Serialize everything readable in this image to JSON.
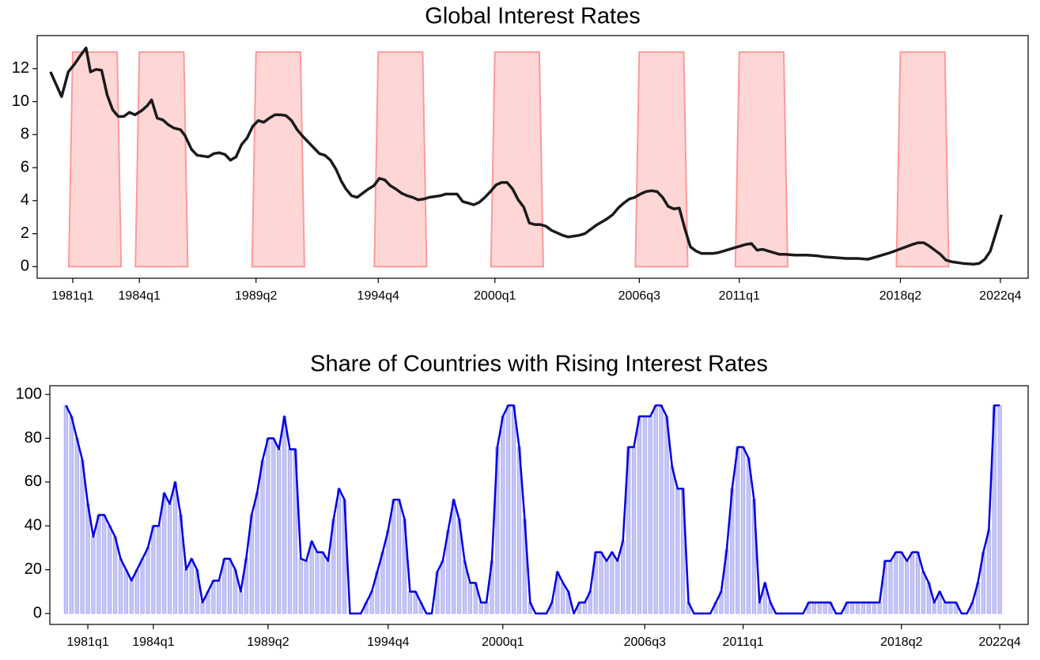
{
  "chart_data": [
    {
      "type": "line",
      "title": "Global Interest Rates",
      "color": "#1a1a1a",
      "x": [
        1980.0,
        1980.3,
        1980.5,
        1980.8,
        1981.1,
        1981.35,
        1981.6,
        1981.8,
        1982.05,
        1982.3,
        1982.55,
        1982.8,
        1983.05,
        1983.3,
        1983.55,
        1983.8,
        1984.1,
        1984.35,
        1984.55,
        1984.8,
        1985.05,
        1985.3,
        1985.55,
        1985.85,
        1986.05,
        1986.35,
        1986.6,
        1986.85,
        1987.1,
        1987.35,
        1987.6,
        1987.85,
        1988.1,
        1988.35,
        1988.6,
        1988.85,
        1989.1,
        1989.35,
        1989.6,
        1989.85,
        1990.1,
        1990.35,
        1990.6,
        1990.85,
        1991.1,
        1991.35,
        1991.6,
        1991.85,
        1992.1,
        1992.35,
        1992.6,
        1992.85,
        1993.1,
        1993.3,
        1993.55,
        1993.8,
        1994.05,
        1994.3,
        1994.55,
        1994.8,
        1995.05,
        1995.3,
        1995.55,
        1995.8,
        1996.05,
        1996.3,
        1996.55,
        1996.8,
        1997.05,
        1997.3,
        1997.55,
        1997.8,
        1998.05,
        1998.3,
        1998.55,
        1998.8,
        1999.05,
        1999.3,
        1999.55,
        1999.8,
        2000.05,
        2000.3,
        2000.55,
        2000.8,
        2001.05,
        2001.3,
        2001.55,
        2001.8,
        2002.05,
        2002.3,
        2002.55,
        2002.8,
        2003.05,
        2003.3,
        2003.55,
        2003.8,
        2004.05,
        2004.3,
        2004.55,
        2004.8,
        2005.05,
        2005.3,
        2005.55,
        2005.8,
        2006.05,
        2006.3,
        2006.55,
        2006.8,
        2007.05,
        2007.3,
        2007.55,
        2007.8,
        2008.05,
        2008.3,
        2008.55,
        2008.8,
        2009.05,
        2009.3,
        2009.55,
        2009.8,
        2010.05,
        2010.3,
        2010.55,
        2010.8,
        2011.05,
        2011.3,
        2011.55,
        2011.8,
        2012.05,
        2012.3,
        2012.55,
        2012.8,
        2013.05,
        2013.5,
        2014.05,
        2014.55,
        2014.8,
        2015.3,
        2015.8,
        2016.3,
        2016.8,
        2017.3,
        2017.8,
        2018.3,
        2018.8,
        2019.05,
        2019.3,
        2019.55,
        2019.8,
        2020.05,
        2020.3,
        2020.55,
        2021.05,
        2021.55,
        2021.8,
        2022.05,
        2022.3,
        2022.55,
        2022.8
      ],
      "values": [
        11.8,
        10.9,
        10.3,
        11.8,
        12.3,
        12.8,
        13.25,
        11.8,
        11.95,
        11.9,
        10.4,
        9.5,
        9.1,
        9.1,
        9.35,
        9.2,
        9.45,
        9.75,
        10.1,
        9.0,
        8.9,
        8.6,
        8.4,
        8.3,
        7.95,
        7.1,
        6.75,
        6.7,
        6.65,
        6.85,
        6.9,
        6.8,
        6.45,
        6.65,
        7.4,
        7.8,
        8.5,
        8.85,
        8.75,
        9.0,
        9.2,
        9.2,
        9.15,
        8.85,
        8.3,
        7.9,
        7.55,
        7.2,
        6.85,
        6.75,
        6.45,
        5.9,
        5.15,
        4.7,
        4.3,
        4.2,
        4.45,
        4.7,
        4.9,
        5.35,
        5.25,
        4.9,
        4.7,
        4.45,
        4.3,
        4.2,
        4.05,
        4.1,
        4.2,
        4.25,
        4.3,
        4.4,
        4.4,
        4.4,
        3.95,
        3.85,
        3.75,
        3.9,
        4.2,
        4.55,
        4.95,
        5.1,
        5.1,
        4.7,
        4.05,
        3.6,
        2.65,
        2.55,
        2.55,
        2.45,
        2.2,
        2.05,
        1.9,
        1.8,
        1.85,
        1.9,
        2.0,
        2.25,
        2.5,
        2.7,
        2.9,
        3.15,
        3.55,
        3.85,
        4.1,
        4.2,
        4.4,
        4.55,
        4.6,
        4.55,
        4.2,
        3.65,
        3.5,
        3.55,
        2.3,
        1.2,
        0.95,
        0.8,
        0.8,
        0.8,
        0.85,
        0.95,
        1.05,
        1.15,
        1.25,
        1.35,
        1.4,
        1.0,
        1.05,
        0.95,
        0.85,
        0.75,
        0.75,
        0.7,
        0.7,
        0.65,
        0.6,
        0.55,
        0.5,
        0.5,
        0.45,
        0.65,
        0.85,
        1.1,
        1.35,
        1.45,
        1.45,
        1.25,
        1.0,
        0.75,
        0.4,
        0.3,
        0.2,
        0.15,
        0.2,
        0.45,
        0.95,
        2.05,
        3.15
      ],
      "bands": [
        {
          "start": 1981.0,
          "end": 1983.0
        },
        {
          "start": 1984.0,
          "end": 1986.0
        },
        {
          "start": 1989.25,
          "end": 1991.25
        },
        {
          "start": 1994.75,
          "end": 1996.75
        },
        {
          "start": 2000.0,
          "end": 2002.0
        },
        {
          "start": 2006.5,
          "end": 2008.5
        },
        {
          "start": 2011.0,
          "end": 2013.0
        },
        {
          "start": 2018.25,
          "end": 2020.25
        }
      ],
      "band_top": 13,
      "band_color": "#ff9999",
      "xlim": [
        1979.4,
        2024.0
      ],
      "ylim": [
        -0.7,
        14
      ],
      "xticks": [
        {
          "value": 1981.0,
          "label": "1981q1"
        },
        {
          "value": 1984.0,
          "label": "1984q1"
        },
        {
          "value": 1989.25,
          "label": "1989q2"
        },
        {
          "value": 1994.75,
          "label": "1994q4"
        },
        {
          "value": 2000.0,
          "label": "2000q1"
        },
        {
          "value": 2006.5,
          "label": "2006q3"
        },
        {
          "value": 2011.0,
          "label": "2011q1"
        },
        {
          "value": 2018.25,
          "label": "2018q2"
        },
        {
          "value": 2022.75,
          "label": "2022q4"
        }
      ],
      "yticks": [
        0,
        2,
        4,
        6,
        8,
        10,
        12
      ]
    },
    {
      "type": "bar",
      "title": "Share of Countries with Rising Interest Rates",
      "color": "#c6c6f7",
      "line_color": "#0000e6",
      "x": [
        1980.0,
        1980.25,
        1980.5,
        1980.75,
        1981.0,
        1981.25,
        1981.5,
        1981.75,
        1982.0,
        1982.25,
        1982.5,
        1982.75,
        1983.0,
        1983.25,
        1983.5,
        1983.75,
        1984.0,
        1984.25,
        1984.5,
        1984.75,
        1985.0,
        1985.25,
        1985.5,
        1985.75,
        1986.0,
        1986.25,
        1986.5,
        1986.75,
        1987.0,
        1987.25,
        1987.5,
        1987.75,
        1988.0,
        1988.25,
        1988.5,
        1988.75,
        1989.0,
        1989.25,
        1989.5,
        1989.75,
        1990.0,
        1990.25,
        1990.5,
        1990.75,
        1991.0,
        1991.25,
        1991.5,
        1991.75,
        1992.0,
        1992.25,
        1992.5,
        1992.75,
        1993.0,
        1993.25,
        1993.5,
        1993.75,
        1994.0,
        1994.25,
        1994.5,
        1994.75,
        1995.0,
        1995.25,
        1995.5,
        1995.75,
        1996.0,
        1996.25,
        1996.5,
        1996.75,
        1997.0,
        1997.25,
        1997.5,
        1997.75,
        1998.0,
        1998.25,
        1998.5,
        1998.75,
        1999.0,
        1999.25,
        1999.5,
        1999.75,
        2000.0,
        2000.25,
        2000.5,
        2000.75,
        2001.0,
        2001.25,
        2001.5,
        2001.75,
        2002.0,
        2002.25,
        2002.5,
        2002.75,
        2003.0,
        2003.25,
        2003.5,
        2003.75,
        2004.0,
        2004.25,
        2004.5,
        2004.75,
        2005.0,
        2005.25,
        2005.5,
        2005.75,
        2006.0,
        2006.25,
        2006.5,
        2006.75,
        2007.0,
        2007.25,
        2007.5,
        2007.75,
        2008.0,
        2008.25,
        2008.5,
        2008.75,
        2009.0,
        2009.25,
        2009.5,
        2009.75,
        2010.0,
        2010.25,
        2010.5,
        2010.75,
        2011.0,
        2011.25,
        2011.5,
        2011.75,
        2012.0,
        2012.25,
        2012.5,
        2012.75,
        2013.0,
        2013.25,
        2013.5,
        2013.75,
        2014.0,
        2014.25,
        2014.5,
        2014.75,
        2015.0,
        2015.25,
        2015.5,
        2015.75,
        2016.0,
        2016.25,
        2016.5,
        2016.75,
        2017.0,
        2017.25,
        2017.5,
        2017.75,
        2018.0,
        2018.25,
        2018.5,
        2018.75,
        2019.0,
        2019.25,
        2019.5,
        2019.75,
        2020.0,
        2020.25,
        2020.5,
        2020.75,
        2021.0,
        2021.25,
        2021.5,
        2021.75,
        2022.0,
        2022.25,
        2022.5,
        2022.75
      ],
      "values": [
        95,
        90,
        80,
        70,
        50,
        35,
        45,
        45,
        40,
        35,
        25,
        20,
        15,
        20,
        25,
        30,
        40,
        40,
        55,
        50,
        60,
        45,
        20,
        25,
        20,
        5,
        10,
        15,
        15,
        25,
        25,
        20,
        10,
        25,
        45,
        55,
        70,
        80,
        80,
        75,
        90,
        75,
        75,
        25,
        24,
        33,
        28,
        28,
        24,
        43,
        57,
        52,
        0,
        0,
        0,
        5,
        10,
        19,
        28,
        38,
        52,
        52,
        43,
        10,
        10,
        5,
        0,
        0,
        19,
        24,
        38,
        52,
        43,
        24,
        14,
        14,
        5,
        5,
        24,
        76,
        90,
        95,
        95,
        76,
        43,
        5,
        0,
        0,
        0,
        5,
        19,
        14,
        10,
        0,
        5,
        5,
        10,
        28,
        28,
        24,
        28,
        24,
        33,
        76,
        76,
        90,
        90,
        90,
        95,
        95,
        90,
        67,
        57,
        57,
        5,
        0,
        0,
        0,
        0,
        5,
        10,
        29,
        57,
        76,
        76,
        71,
        52,
        5,
        14,
        5,
        0,
        0,
        0,
        0,
        0,
        0,
        5,
        5,
        5,
        5,
        5,
        0,
        0,
        5,
        5,
        5,
        5,
        5,
        5,
        5,
        24,
        24,
        28,
        28,
        24,
        28,
        28,
        19,
        14,
        5,
        10,
        5,
        5,
        5,
        0,
        0,
        5,
        14,
        28,
        38,
        95,
        95
      ],
      "xlim": [
        1979.26,
        2024.05
      ],
      "ylim": [
        -5,
        104
      ],
      "xticks": [
        {
          "value": 1981.0,
          "label": "1981q1"
        },
        {
          "value": 1984.0,
          "label": "1984q1"
        },
        {
          "value": 1989.25,
          "label": "1989q2"
        },
        {
          "value": 1994.75,
          "label": "1994q4"
        },
        {
          "value": 2000.0,
          "label": "2000q1"
        },
        {
          "value": 2006.5,
          "label": "2006q3"
        },
        {
          "value": 2011.0,
          "label": "2011q1"
        },
        {
          "value": 2018.25,
          "label": "2018q2"
        },
        {
          "value": 2022.75,
          "label": "2022q4"
        }
      ],
      "yticks": [
        0,
        20,
        40,
        60,
        80,
        100
      ]
    }
  ]
}
